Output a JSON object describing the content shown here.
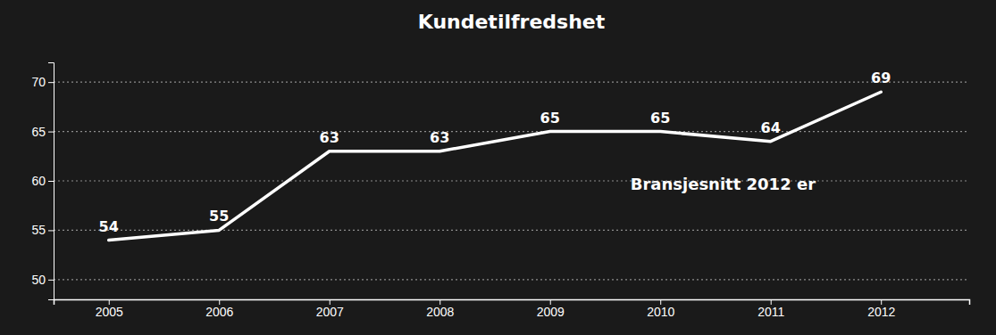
{
  "chart_data": {
    "type": "line",
    "title": "Kundetilfredshet",
    "x": [
      2005,
      2006,
      2007,
      2008,
      2009,
      2010,
      2011,
      2012
    ],
    "values": [
      54,
      55,
      63,
      63,
      65,
      65,
      64,
      69
    ],
    "color": "#ffffff",
    "xlim": [
      2004.5,
      2012.8
    ],
    "xticks": [
      2005,
      2006,
      2007,
      2008,
      2009,
      2010,
      2011,
      2012
    ],
    "ylim": [
      48,
      72
    ],
    "yticks": [
      50,
      55,
      60,
      65,
      70
    ],
    "grid": true,
    "data_labels": true,
    "annotation": "Bransjesnitt 2012 er"
  }
}
